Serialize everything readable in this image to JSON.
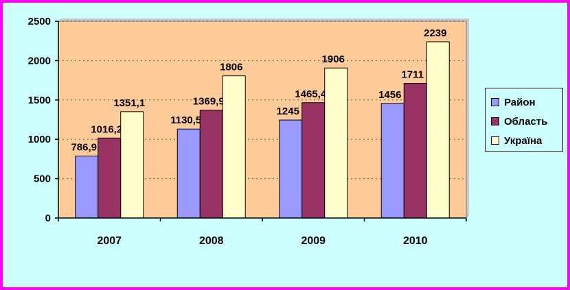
{
  "chart_data": {
    "type": "bar",
    "title": "",
    "xlabel": "",
    "ylabel": "",
    "categories": [
      "2007",
      "2008",
      "2009",
      "2010"
    ],
    "ylim": [
      0,
      2500
    ],
    "yticks": [
      "0",
      "500",
      "1000",
      "1500",
      "2000",
      "2500"
    ],
    "grid": true,
    "legend_position": "right",
    "plot_background": "#ffcc99",
    "series": [
      {
        "name": "Район",
        "color": "#9999ff",
        "values": [
          786.9,
          1130.5,
          1245,
          1456
        ],
        "labels": [
          "786,9",
          "1130,5",
          "1245",
          "1456"
        ]
      },
      {
        "name": "Область",
        "color": "#993366",
        "values": [
          1016.2,
          1369.9,
          1465.4,
          1711
        ],
        "labels": [
          "1016,2",
          "1369,9",
          "1465,4",
          "1711"
        ]
      },
      {
        "name": "Україна",
        "color": "#ffffcc",
        "values": [
          1351.1,
          1806,
          1906,
          2239
        ],
        "labels": [
          "1351,1",
          "1806",
          "1906",
          "2239"
        ]
      }
    ]
  }
}
